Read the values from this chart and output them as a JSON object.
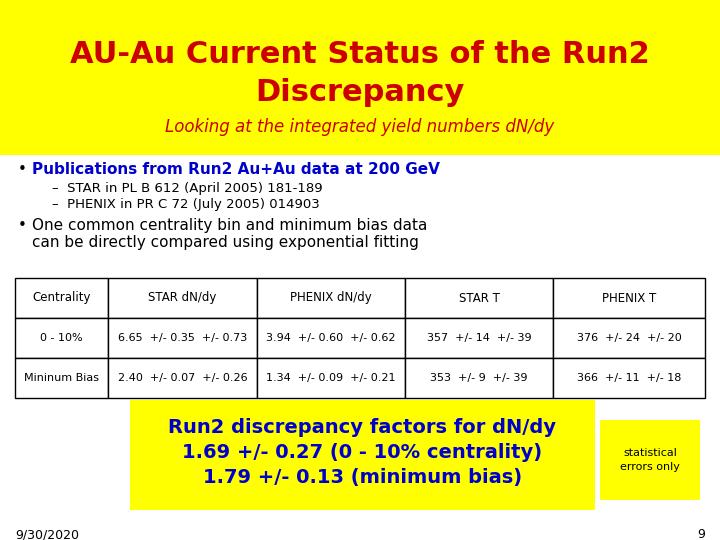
{
  "title_line1": "AU-Au Current Status of the Run2",
  "title_line2": "Discrepancy",
  "subtitle": "Looking at the integrated yield numbers dN/dy",
  "title_color": "#cc0000",
  "subtitle_color": "#cc0000",
  "header_bg": "#ffff00",
  "bullet1_text": "Publications from Run2 Au+Au data at 200 GeV",
  "bullet1_color": "#0000cc",
  "sub1a": "STAR in PL B 612 (April 2005) 181-189",
  "sub1b": "PHENIX in PR C 72 (July 2005) 014903",
  "sub_color": "#000000",
  "bullet2_line1": "One common centrality bin and minimum bias data",
  "bullet2_line2": "can be directly compared using exponential fitting",
  "bullet2_color": "#000000",
  "table_headers": [
    "Centrality",
    "STAR dN/dy",
    "PHENIX dN/dy",
    "STAR T",
    "PHENIX T"
  ],
  "table_row1": [
    "0 - 10%",
    "6.65  +/- 0.35  +/- 0.73",
    "3.94  +/- 0.60  +/- 0.62",
    "357  +/- 14  +/- 39",
    "376  +/- 24  +/- 20"
  ],
  "table_row2": [
    "Mininum Bias",
    "2.40  +/- 0.07  +/- 0.26",
    "1.34  +/- 0.09  +/- 0.21",
    "353  +/- 9  +/- 39",
    "366  +/- 11  +/- 18"
  ],
  "summary_line1": "Run2 discrepancy factors for dN/dy",
  "summary_line2": "1.69 +/- 0.27 (0 - 10% centrality)",
  "summary_line3": "1.79 +/- 0.13 (minimum bias)",
  "summary_bg": "#ffff00",
  "summary_text_color": "#0000cc",
  "stat_text": "statistical\nerrors only",
  "stat_bg": "#ffff00",
  "stat_text_color": "#000000",
  "date_text": "9/30/2020",
  "page_num": "9",
  "bg_color": "#ffffff"
}
